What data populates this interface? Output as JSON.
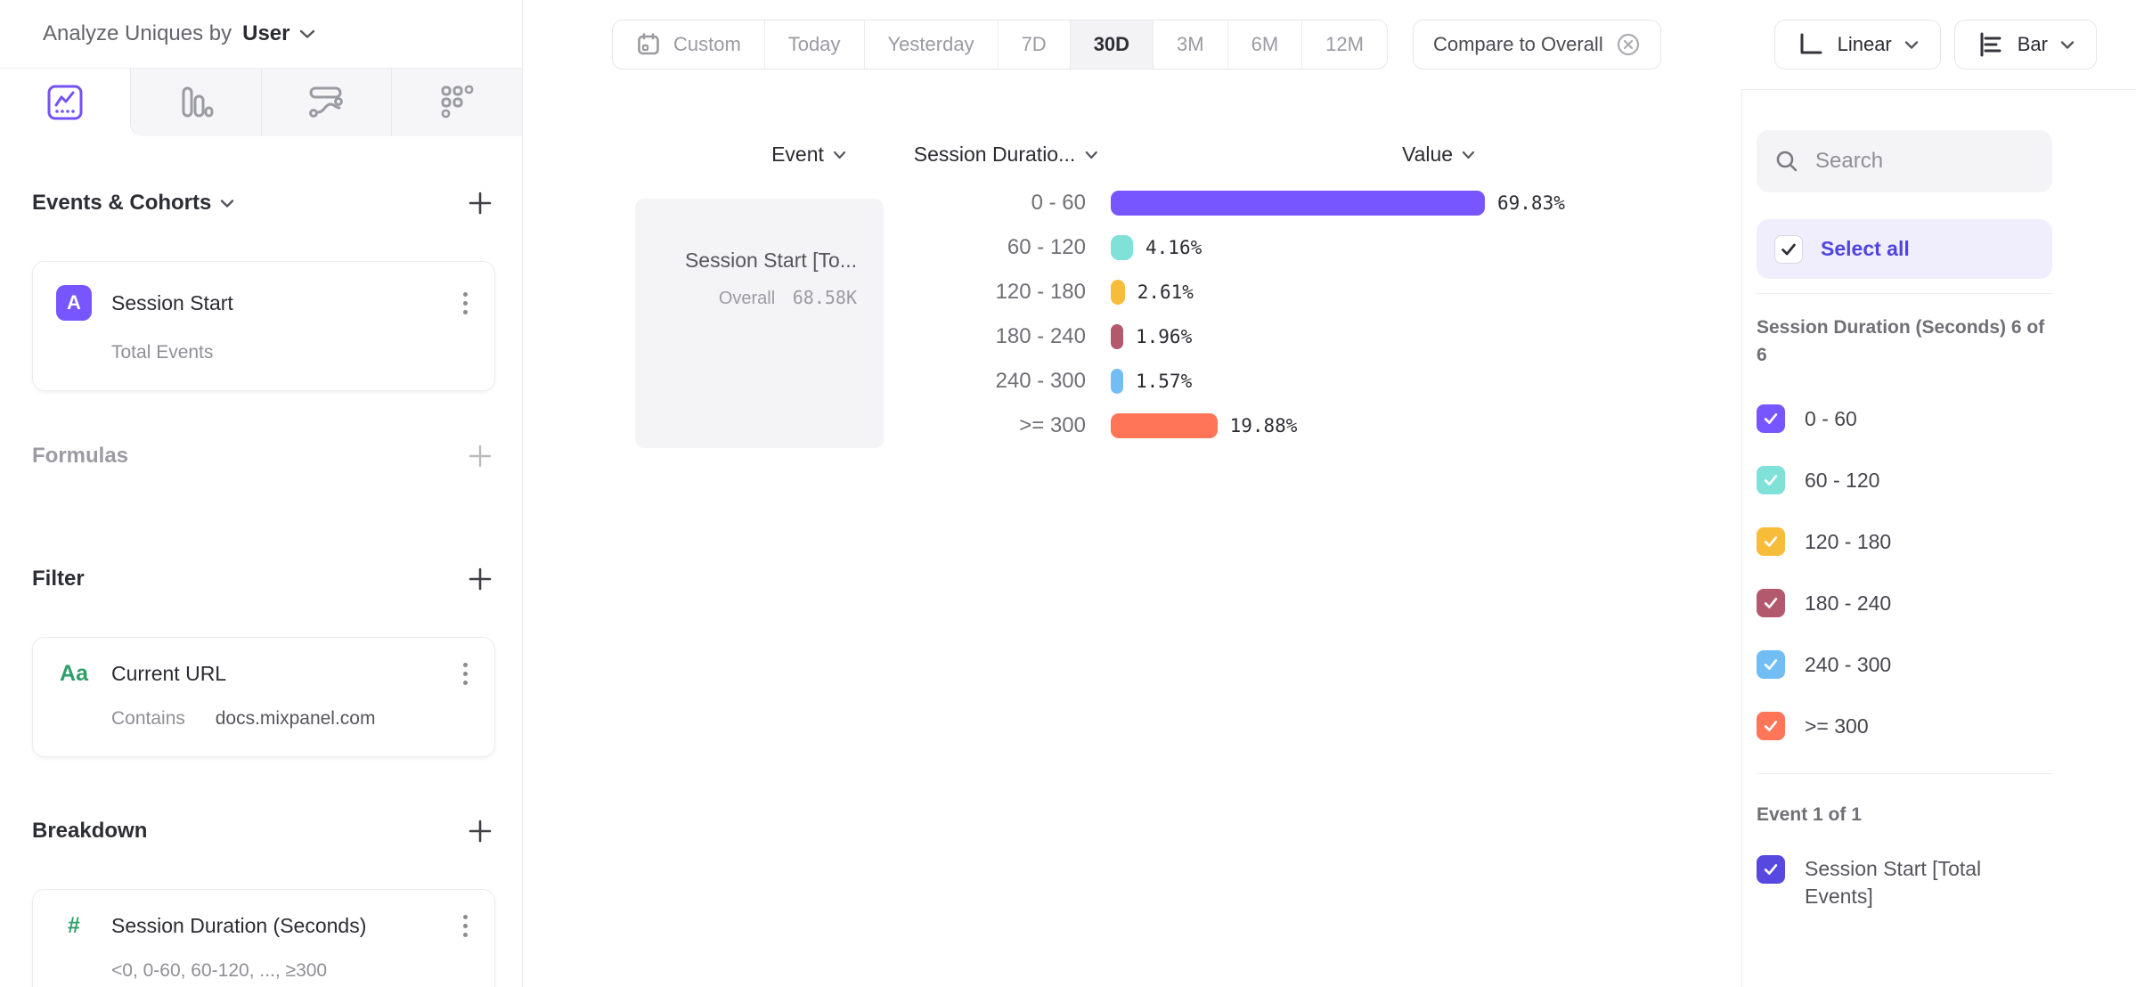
{
  "header": {
    "analyze_prefix": "Analyze Uniques by",
    "analyze_value": "User"
  },
  "sidebar": {
    "tabs": [
      {
        "name": "insights-line-chart",
        "selected": true
      },
      {
        "name": "bar-chart",
        "selected": false
      },
      {
        "name": "flows",
        "selected": false
      },
      {
        "name": "retention-grid",
        "selected": false
      }
    ],
    "events_section": {
      "title": "Events & Cohorts"
    },
    "event_card": {
      "badge": "A",
      "title": "Session Start",
      "subtitle": "Total Events"
    },
    "formulas_section": {
      "title": "Formulas"
    },
    "filter_section": {
      "title": "Filter"
    },
    "filter_card": {
      "icon": "Aa",
      "title": "Current URL",
      "operator": "Contains",
      "value": "docs.mixpanel.com"
    },
    "breakdown_section": {
      "title": "Breakdown"
    },
    "breakdown_card": {
      "icon": "#",
      "title": "Session Duration (Seconds)",
      "subtitle": "<0, 0-60, 60-120, ..., ≥300"
    }
  },
  "toolbar": {
    "ranges": [
      "Custom",
      "Today",
      "Yesterday",
      "7D",
      "30D",
      "3M",
      "6M",
      "12M"
    ],
    "selected_range": "30D",
    "compare_label": "Compare to Overall",
    "scale_label": "Linear",
    "type_label": "Bar"
  },
  "chart_data": {
    "type": "bar",
    "orientation": "horizontal",
    "columns": {
      "event": "Event",
      "breakdown": "Session Duratio...",
      "value": "Value"
    },
    "event_cell": {
      "title": "Session Start [To...",
      "overall_label": "Overall",
      "overall_value": "68.58K"
    },
    "categories": [
      "0 - 60",
      "60 - 120",
      "120 - 180",
      "180 - 240",
      "240 - 300",
      ">= 300"
    ],
    "values": [
      69.83,
      4.16,
      2.61,
      1.96,
      1.57,
      19.88
    ],
    "value_labels": [
      "69.83%",
      "4.16%",
      "2.61%",
      "1.96%",
      "1.57%",
      "19.88%"
    ],
    "colors": [
      "#7856FF",
      "#80E1D9",
      "#F8BC3B",
      "#B2596E",
      "#72BEF4",
      "#FF7557"
    ],
    "xlim": [
      0,
      69.83
    ],
    "grid": false,
    "legend_position": "right-panel"
  },
  "panel": {
    "search_placeholder": "Search",
    "select_all_label": "Select all",
    "accent_color": "#4F44E0",
    "group1_label": "Session Duration (Seconds) 6 of 6",
    "items": [
      {
        "label": "0 - 60",
        "color": "#7856FF",
        "checked": true
      },
      {
        "label": "60 - 120",
        "color": "#80E1D9",
        "checked": true
      },
      {
        "label": "120 - 180",
        "color": "#F8BC3B",
        "checked": true
      },
      {
        "label": "180 - 240",
        "color": "#B2596E",
        "checked": true
      },
      {
        "label": "240 - 300",
        "color": "#72BEF4",
        "checked": true
      },
      {
        "label": ">= 300",
        "color": "#FF7557",
        "checked": true
      }
    ],
    "group2_label": "Event 1 of 1",
    "event_item": {
      "label": "Session Start [Total Events]",
      "color": "#5749E0",
      "checked": true
    }
  }
}
